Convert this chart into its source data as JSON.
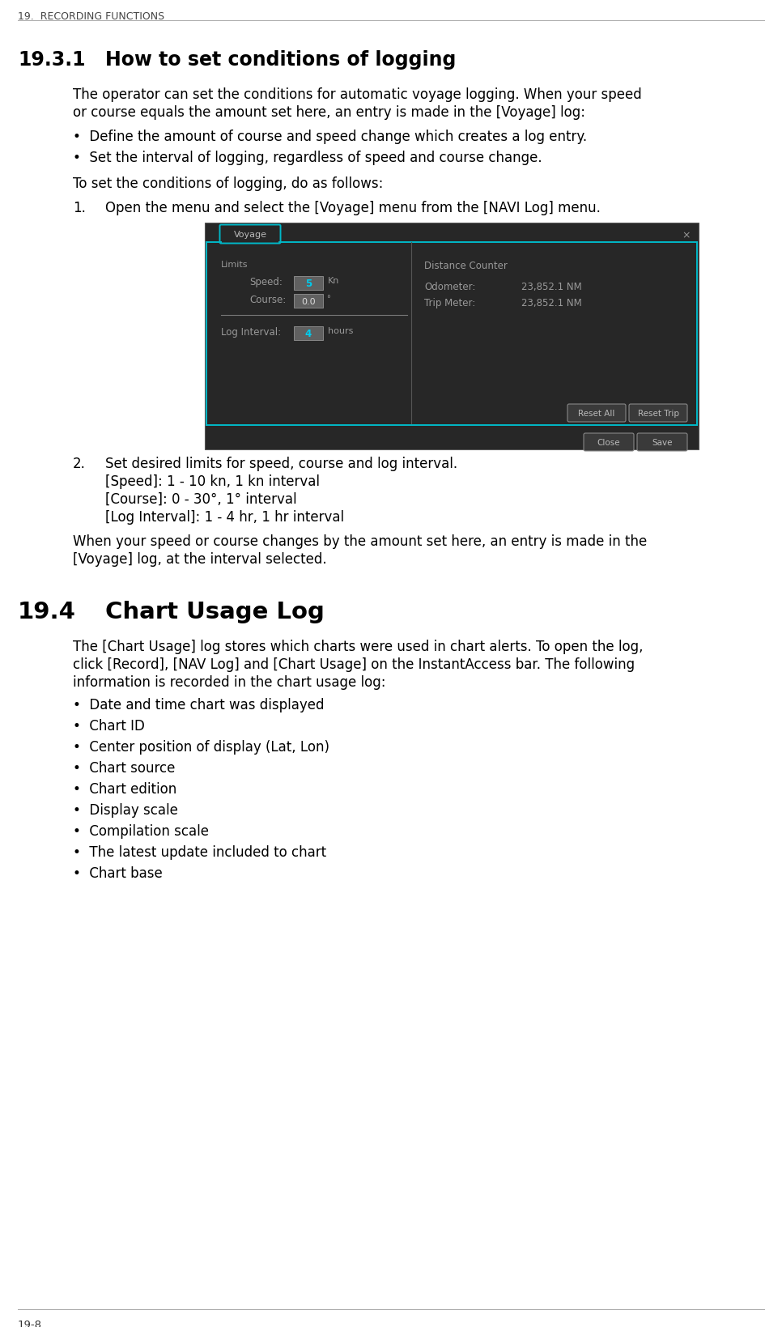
{
  "bg_color": "#ffffff",
  "top_header": "19.  RECORDING FUNCTIONS",
  "section_title": "19.3.1",
  "section_heading": "How to set conditions of logging",
  "para1_line1": "The operator can set the conditions for automatic voyage logging. When your speed",
  "para1_line2": "or course equals the amount set here, an entry is made in the [Voyage] log:",
  "bullets1": [
    "Define the amount of course and speed change which creates a log entry.",
    "Set the interval of logging, regardless of speed and course change."
  ],
  "para2": "To set the conditions of logging, do as follows:",
  "step1_text": "Open the menu and select the [Voyage] menu from the [NAVI Log] menu.",
  "step2_line0": "Set desired limits for speed, course and log interval.",
  "step2_line1": "[Speed]: 1 - 10 kn, 1 kn interval",
  "step2_line2": "[Course]: 0 - 30°, 1° interval",
  "step2_line3": "[Log Interval]: 1 - 4 hr, 1 hr interval",
  "para3_line1": "When your speed or course changes by the amount set here, an entry is made in the",
  "para3_line2": "[Voyage] log, at the interval selected.",
  "section2_title": "19.4",
  "section2_heading": "Chart Usage Log",
  "para4_line1": "The [Chart Usage] log stores which charts were used in chart alerts. To open the log,",
  "para4_line2": "click [Record], [NAV Log] and [Chart Usage] on the InstantAccess bar. The following",
  "para4_line3": "information is recorded in the chart usage log:",
  "bullets2": [
    "Date and time chart was displayed",
    "Chart ID",
    "Center position of display (Lat, Lon)",
    "Chart source",
    "Chart edition",
    "Display scale",
    "Compilation scale",
    "The latest update included to chart",
    "Chart base"
  ],
  "footer": "19-8",
  "dialog_bg": "#272727",
  "dialog_outer_border": "#555555",
  "dialog_border": "#00b8c8",
  "dialog_tab_text": "#bbbbbb",
  "dialog_label_color": "#999999",
  "dialog_input_bg": "#606060",
  "dialog_input_highlight": "#00ccee",
  "dialog_input_normal": "#dddddd",
  "dialog_button_bg": "#3a3a3a",
  "dialog_button_border": "#888888",
  "dialog_button_text": "#bbbbbb",
  "dialog_separator": "#777777",
  "dialog_divider": "#555555"
}
